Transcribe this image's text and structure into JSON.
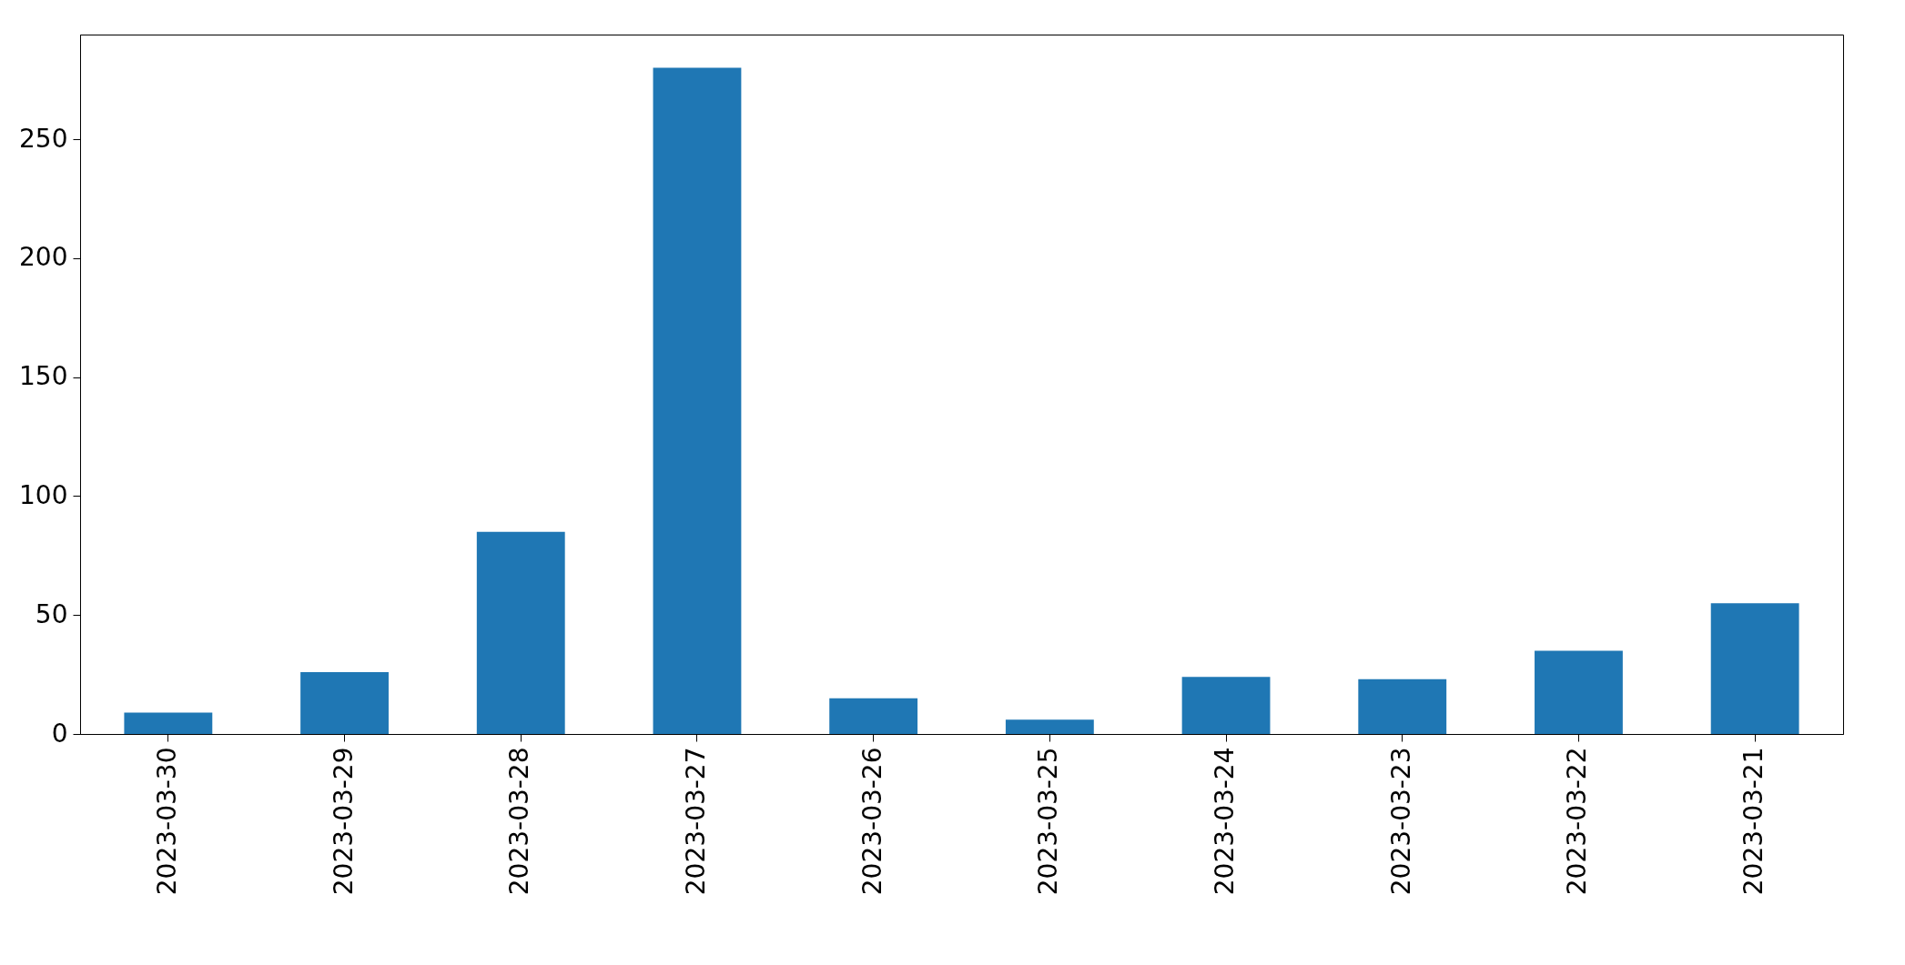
{
  "chart_data": {
    "type": "bar",
    "categories": [
      "2023-03-30",
      "2023-03-29",
      "2023-03-28",
      "2023-03-27",
      "2023-03-26",
      "2023-03-25",
      "2023-03-24",
      "2023-03-23",
      "2023-03-22",
      "2023-03-21"
    ],
    "values": [
      9,
      26,
      85,
      280,
      15,
      6,
      24,
      23,
      35,
      55
    ],
    "color": "#1f77b4",
    "ylim": [
      0,
      294
    ],
    "yticks": [
      0,
      50,
      100,
      150,
      200,
      250
    ],
    "grid": false
  }
}
